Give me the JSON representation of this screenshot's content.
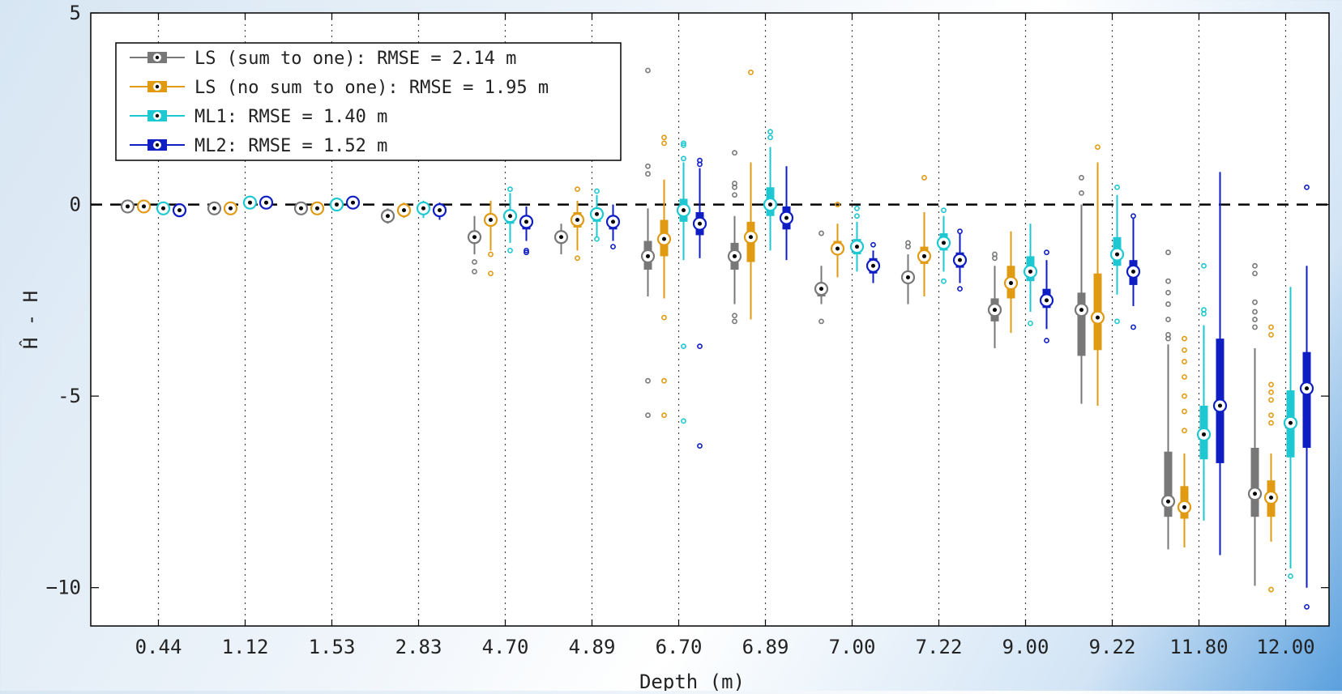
{
  "chart_data": {
    "type": "box",
    "title": "",
    "xlabel": "Depth (m)",
    "ylabel": "Ĥ - H",
    "ylim": [
      -11,
      5
    ],
    "yticks": [
      5,
      0,
      -5,
      -10
    ],
    "ytick_labels": [
      "5",
      "0",
      "-5",
      "−10"
    ],
    "grid": "vertical dotted at each depth",
    "reference_line": 0,
    "legend_position": "top-left",
    "categories": [
      "0.44",
      "1.12",
      "1.53",
      "2.83",
      "4.70",
      "4.89",
      "6.70",
      "6.89",
      "7.00",
      "7.22",
      "9.00",
      "9.22",
      "11.80",
      "12.00"
    ],
    "series": [
      {
        "name": "LS (sum to one): RMSE = 2.14 m",
        "color": "#787878",
        "boxes": [
          {
            "median": -0.05,
            "q1": -0.1,
            "q3": 0.0,
            "lo": -0.15,
            "hi": 0.05,
            "outliers": []
          },
          {
            "median": -0.1,
            "q1": -0.15,
            "q3": -0.05,
            "lo": -0.25,
            "hi": 0.0,
            "outliers": []
          },
          {
            "median": -0.1,
            "q1": -0.15,
            "q3": -0.05,
            "lo": -0.2,
            "hi": 0.0,
            "outliers": []
          },
          {
            "median": -0.3,
            "q1": -0.4,
            "q3": -0.2,
            "lo": -0.5,
            "hi": -0.1,
            "outliers": []
          },
          {
            "median": -0.85,
            "q1": -1.0,
            "q3": -0.7,
            "lo": -1.3,
            "hi": -0.3,
            "outliers": [
              -1.5,
              -1.75
            ]
          },
          {
            "median": -0.85,
            "q1": -1.0,
            "q3": -0.7,
            "lo": -1.3,
            "hi": -0.5,
            "outliers": []
          },
          {
            "median": -1.35,
            "q1": -1.7,
            "q3": -0.95,
            "lo": -2.4,
            "hi": -0.1,
            "outliers": [
              3.5,
              1.0,
              0.8,
              -4.6,
              -5.5
            ]
          },
          {
            "median": -1.35,
            "q1": -1.7,
            "q3": -1.0,
            "lo": -2.6,
            "hi": -0.3,
            "outliers": [
              1.35,
              0.55,
              0.45,
              0.25,
              -2.9,
              -3.05
            ]
          },
          {
            "median": -2.2,
            "q1": -2.4,
            "q3": -2.05,
            "lo": -2.6,
            "hi": -1.6,
            "outliers": [
              -0.75,
              -3.05
            ]
          },
          {
            "median": -1.9,
            "q1": -2.05,
            "q3": -1.75,
            "lo": -2.6,
            "hi": -1.3,
            "outliers": [
              -1.0,
              -1.1
            ]
          },
          {
            "median": -2.75,
            "q1": -3.05,
            "q3": -2.45,
            "lo": -3.75,
            "hi": -1.6,
            "outliers": [
              -1.3,
              -1.4
            ]
          },
          {
            "median": -2.75,
            "q1": -3.95,
            "q3": -2.3,
            "lo": -5.2,
            "hi": 0.0,
            "outliers": [
              0.7,
              0.3
            ]
          },
          {
            "median": -7.75,
            "q1": -8.15,
            "q3": -6.45,
            "lo": -9.0,
            "hi": -3.65,
            "outliers": [
              -1.25,
              -2.0,
              -2.3,
              -2.6,
              -3.0,
              -3.4,
              -3.5
            ]
          },
          {
            "median": -7.55,
            "q1": -8.15,
            "q3": -6.35,
            "lo": -9.95,
            "hi": -3.75,
            "outliers": [
              -1.6,
              -1.8,
              -2.55,
              -2.8,
              -3.0,
              -3.2
            ]
          }
        ]
      },
      {
        "name": "LS (no sum to one): RMSE = 1.95 m",
        "color": "#e09b12",
        "boxes": [
          {
            "median": -0.05,
            "q1": -0.1,
            "q3": 0.0,
            "lo": -0.15,
            "hi": 0.05,
            "outliers": []
          },
          {
            "median": -0.1,
            "q1": -0.15,
            "q3": -0.05,
            "lo": -0.2,
            "hi": 0.0,
            "outliers": []
          },
          {
            "median": -0.1,
            "q1": -0.15,
            "q3": -0.05,
            "lo": -0.2,
            "hi": 0.0,
            "outliers": []
          },
          {
            "median": -0.15,
            "q1": -0.25,
            "q3": -0.05,
            "lo": -0.35,
            "hi": 0.05,
            "outliers": []
          },
          {
            "median": -0.4,
            "q1": -0.55,
            "q3": -0.25,
            "lo": -1.2,
            "hi": 0.1,
            "outliers": [
              -1.3,
              -1.8
            ]
          },
          {
            "median": -0.4,
            "q1": -0.6,
            "q3": -0.2,
            "lo": -1.2,
            "hi": 0.1,
            "outliers": [
              0.4,
              -1.4
            ]
          },
          {
            "median": -0.9,
            "q1": -1.35,
            "q3": -0.4,
            "lo": -2.45,
            "hi": 0.65,
            "outliers": [
              1.75,
              1.6,
              -2.95,
              -4.6,
              -5.5
            ]
          },
          {
            "median": -0.85,
            "q1": -1.5,
            "q3": -0.45,
            "lo": -3.0,
            "hi": 1.1,
            "outliers": [
              3.45
            ]
          },
          {
            "median": -1.15,
            "q1": -1.3,
            "q3": -0.95,
            "lo": -1.9,
            "hi": -0.5,
            "outliers": [
              0.0
            ]
          },
          {
            "median": -1.35,
            "q1": -1.55,
            "q3": -1.1,
            "lo": -2.4,
            "hi": -0.2,
            "outliers": [
              0.7
            ]
          },
          {
            "median": -2.05,
            "q1": -2.45,
            "q3": -1.6,
            "lo": -3.35,
            "hi": -0.7,
            "outliers": []
          },
          {
            "median": -2.95,
            "q1": -3.8,
            "q3": -1.8,
            "lo": -5.25,
            "hi": 1.1,
            "outliers": [
              1.5
            ]
          },
          {
            "median": -7.9,
            "q1": -8.2,
            "q3": -7.35,
            "lo": -8.95,
            "hi": -6.5,
            "outliers": [
              -3.5,
              -3.8,
              -4.1,
              -4.5,
              -5.0,
              -5.4,
              -5.9
            ]
          },
          {
            "median": -7.65,
            "q1": -8.15,
            "q3": -7.2,
            "lo": -8.8,
            "hi": -6.5,
            "outliers": [
              -3.2,
              -3.4,
              -4.7,
              -4.9,
              -5.1,
              -5.5,
              -5.7,
              -10.05
            ]
          }
        ]
      },
      {
        "name": "ML1: RMSE = 1.40 m",
        "color": "#1ec8d2",
        "boxes": [
          {
            "median": -0.1,
            "q1": -0.15,
            "q3": -0.05,
            "lo": -0.2,
            "hi": 0.0,
            "outliers": []
          },
          {
            "median": 0.05,
            "q1": 0.0,
            "q3": 0.1,
            "lo": -0.05,
            "hi": 0.15,
            "outliers": []
          },
          {
            "median": 0.0,
            "q1": -0.05,
            "q3": 0.05,
            "lo": -0.1,
            "hi": 0.1,
            "outliers": []
          },
          {
            "median": -0.1,
            "q1": -0.2,
            "q3": 0.0,
            "lo": -0.35,
            "hi": 0.1,
            "outliers": []
          },
          {
            "median": -0.3,
            "q1": -0.5,
            "q3": -0.15,
            "lo": -1.0,
            "hi": 0.3,
            "outliers": [
              0.4,
              -1.2
            ]
          },
          {
            "median": -0.25,
            "q1": -0.45,
            "q3": -0.1,
            "lo": -0.85,
            "hi": 0.25,
            "outliers": [
              0.35,
              -0.9
            ]
          },
          {
            "median": -0.15,
            "q1": -0.45,
            "q3": 0.15,
            "lo": -1.45,
            "hi": 1.1,
            "outliers": [
              1.6,
              1.55,
              1.2,
              -3.7,
              -5.65
            ]
          },
          {
            "median": 0.0,
            "q1": -0.3,
            "q3": 0.45,
            "lo": -1.2,
            "hi": 1.5,
            "outliers": [
              1.9,
              1.75
            ]
          },
          {
            "median": -1.1,
            "q1": -1.3,
            "q3": -0.9,
            "lo": -1.75,
            "hi": -0.45,
            "outliers": [
              -0.1,
              -0.3
            ]
          },
          {
            "median": -1.0,
            "q1": -1.2,
            "q3": -0.75,
            "lo": -1.75,
            "hi": -0.3,
            "outliers": [
              -0.15,
              -2.0
            ]
          },
          {
            "median": -1.75,
            "q1": -2.0,
            "q3": -1.35,
            "lo": -2.8,
            "hi": -0.5,
            "outliers": [
              -3.1
            ]
          },
          {
            "median": -1.3,
            "q1": -1.6,
            "q3": -0.85,
            "lo": -2.35,
            "hi": 0.25,
            "outliers": [
              0.45,
              -3.05
            ]
          },
          {
            "median": -6.0,
            "q1": -6.65,
            "q3": -5.25,
            "lo": -8.25,
            "hi": -3.15,
            "outliers": [
              -1.6,
              -2.75,
              -2.85
            ]
          },
          {
            "median": -5.7,
            "q1": -6.6,
            "q3": -4.85,
            "lo": -9.5,
            "hi": -2.15,
            "outliers": [
              -9.7
            ]
          }
        ]
      },
      {
        "name": "ML2: RMSE = 1.52 m",
        "color": "#0f1ec3",
        "boxes": [
          {
            "median": -0.15,
            "q1": -0.2,
            "q3": -0.1,
            "lo": -0.25,
            "hi": -0.05,
            "outliers": []
          },
          {
            "median": 0.05,
            "q1": 0.0,
            "q3": 0.1,
            "lo": -0.05,
            "hi": 0.15,
            "outliers": []
          },
          {
            "median": 0.05,
            "q1": 0.0,
            "q3": 0.1,
            "lo": -0.05,
            "hi": 0.15,
            "outliers": []
          },
          {
            "median": -0.15,
            "q1": -0.25,
            "q3": -0.05,
            "lo": -0.4,
            "hi": 0.05,
            "outliers": []
          },
          {
            "median": -0.45,
            "q1": -0.65,
            "q3": -0.3,
            "lo": -0.95,
            "hi": -0.05,
            "outliers": [
              -1.2,
              -1.25
            ]
          },
          {
            "median": -0.45,
            "q1": -0.65,
            "q3": -0.3,
            "lo": -0.95,
            "hi": 0.0,
            "outliers": [
              -1.1
            ]
          },
          {
            "median": -0.5,
            "q1": -0.8,
            "q3": -0.2,
            "lo": -1.4,
            "hi": 0.95,
            "outliers": [
              1.15,
              1.05,
              -3.7,
              -6.3
            ]
          },
          {
            "median": -0.35,
            "q1": -0.65,
            "q3": -0.05,
            "lo": -1.45,
            "hi": 1.0,
            "outliers": []
          },
          {
            "median": -1.6,
            "q1": -1.8,
            "q3": -1.4,
            "lo": -2.05,
            "hi": -1.2,
            "outliers": [
              -1.05
            ]
          },
          {
            "median": -1.45,
            "q1": -1.65,
            "q3": -1.25,
            "lo": -2.05,
            "hi": -0.75,
            "outliers": [
              -0.7,
              -2.2
            ]
          },
          {
            "median": -2.5,
            "q1": -2.7,
            "q3": -2.2,
            "lo": -3.25,
            "hi": -1.45,
            "outliers": [
              -1.25,
              -3.55
            ]
          },
          {
            "median": -1.75,
            "q1": -2.1,
            "q3": -1.45,
            "lo": -2.65,
            "hi": -0.35,
            "outliers": [
              -0.3,
              -3.2
            ]
          },
          {
            "median": -5.25,
            "q1": -6.75,
            "q3": -3.5,
            "lo": -9.15,
            "hi": 0.85,
            "outliers": []
          },
          {
            "median": -4.8,
            "q1": -6.35,
            "q3": -3.85,
            "lo": -10.0,
            "hi": -1.6,
            "outliers": [
              0.45,
              -10.5
            ]
          }
        ]
      }
    ]
  }
}
